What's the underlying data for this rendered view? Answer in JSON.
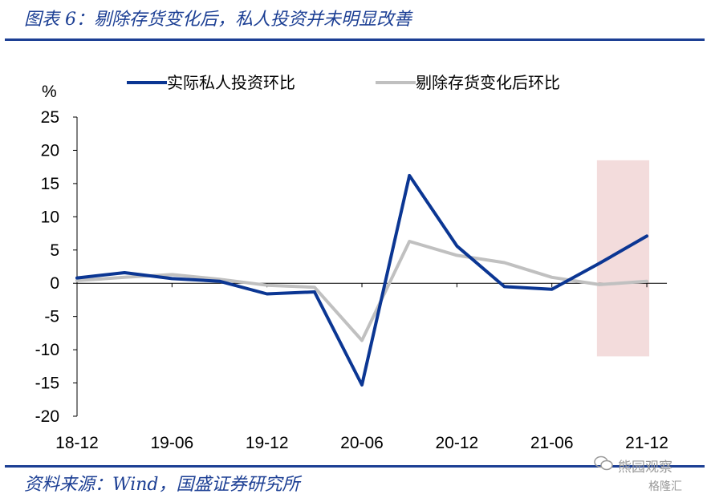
{
  "header": {
    "title": "图表 6：剔除存货变化后，私人投资并未明显改善"
  },
  "footer": {
    "source": "资料来源：Wind，国盛证券研究所",
    "watermark_1": "熊园观察",
    "watermark_2": "格隆汇"
  },
  "colors": {
    "brand": "#1c3f94",
    "series_1": "#0b3693",
    "series_2": "#c0c0c0",
    "highlight": "#f3dcdc"
  },
  "chart_data": {
    "type": "line",
    "ylabel": "%",
    "ylim": [
      -20,
      25
    ],
    "yticks": [
      25,
      20,
      15,
      10,
      5,
      0,
      -5,
      -10,
      -15,
      -20
    ],
    "x": [
      "18-12",
      "19-03",
      "19-06",
      "19-09",
      "19-12",
      "20-03",
      "20-06",
      "20-09",
      "20-12",
      "21-03",
      "21-06",
      "21-09",
      "21-12"
    ],
    "x_tick_labels": [
      "18-12",
      "19-06",
      "19-12",
      "20-06",
      "20-12",
      "21-06",
      "21-12"
    ],
    "series": [
      {
        "name": "实际私人投资环比",
        "color": "#0b3693",
        "values": [
          0.8,
          1.6,
          0.7,
          0.3,
          -1.6,
          -1.3,
          -15.3,
          16.2,
          5.6,
          -0.5,
          -0.9,
          3.0,
          7.1
        ]
      },
      {
        "name": "剔除存货变化后环比",
        "color": "#c0c0c0",
        "values": [
          0.4,
          0.9,
          1.3,
          0.6,
          -0.3,
          -0.6,
          -8.6,
          6.3,
          4.2,
          3.1,
          0.9,
          -0.2,
          0.3
        ]
      }
    ],
    "highlight": {
      "from": "21-09",
      "to": "21-12",
      "ymin": -11,
      "ymax": 18.5
    },
    "legend": "top"
  }
}
